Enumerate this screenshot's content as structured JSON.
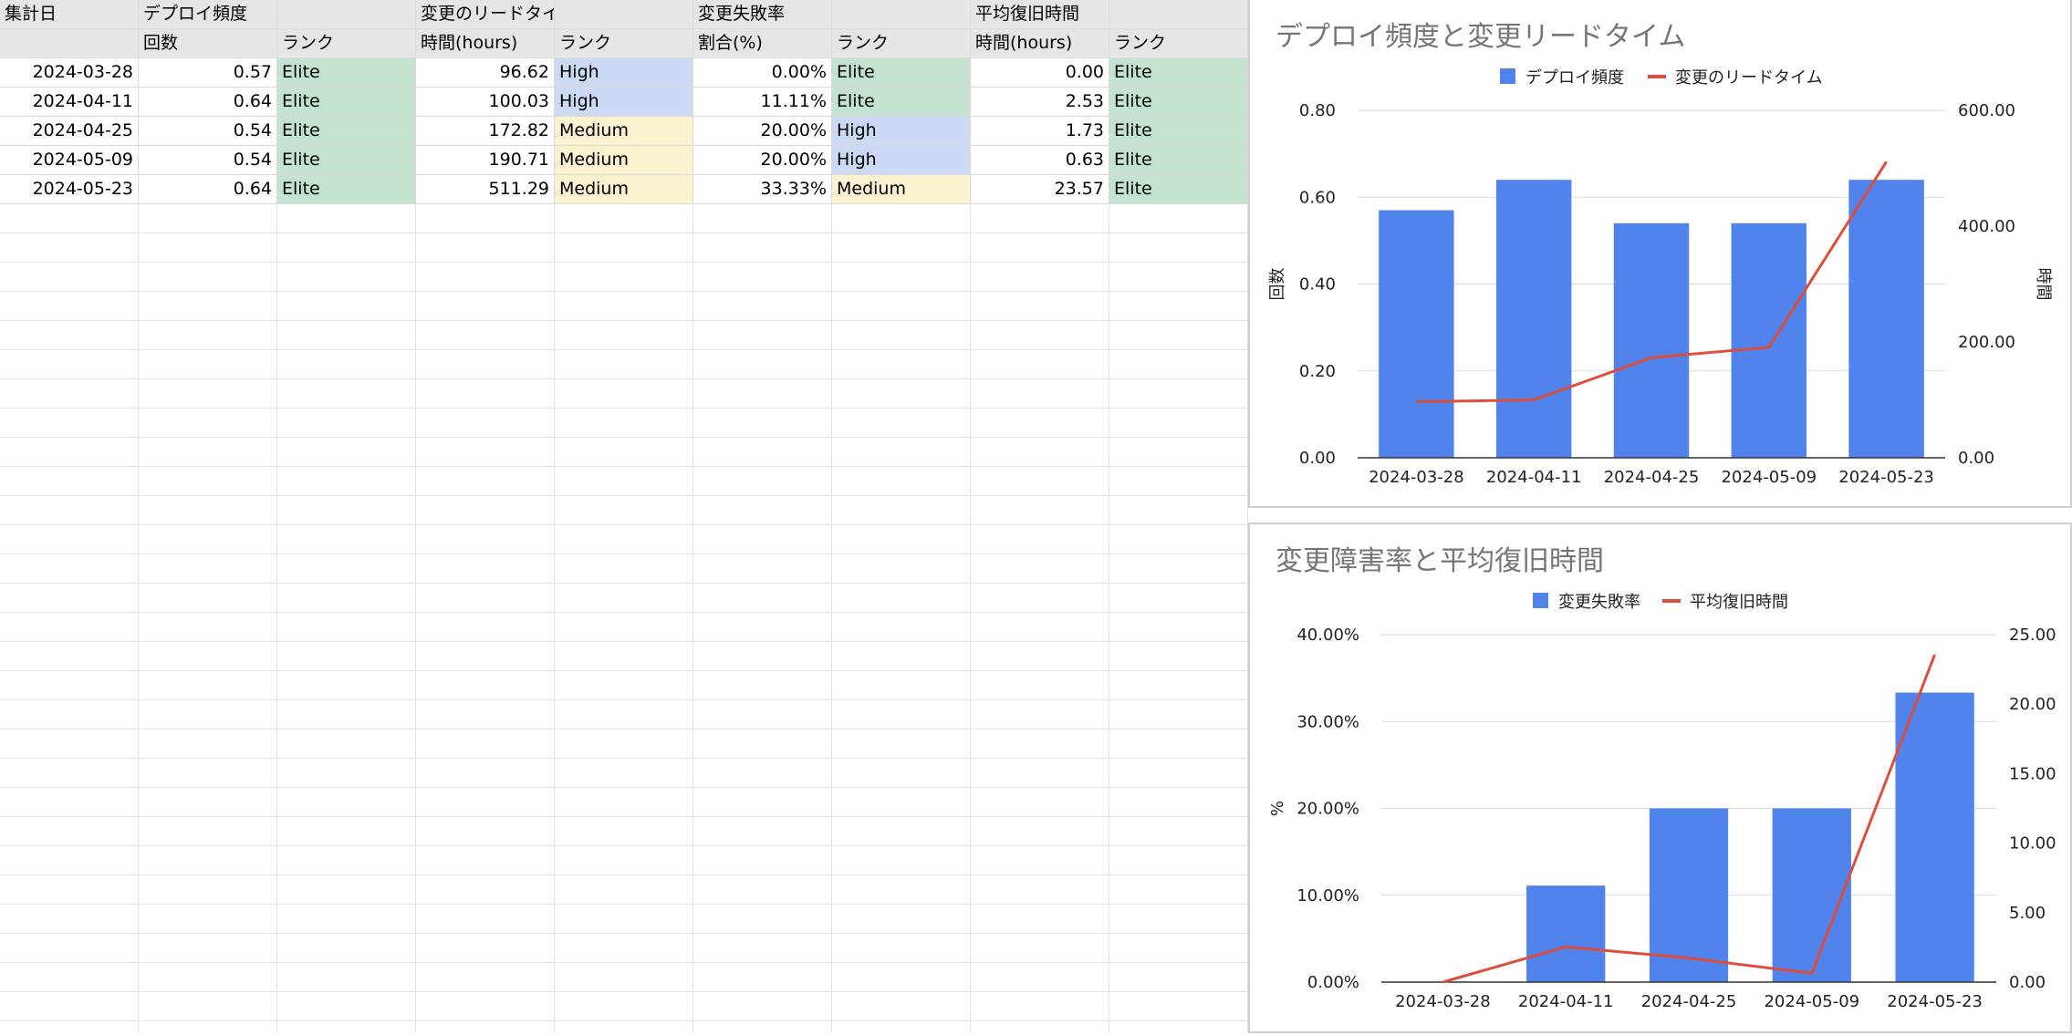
{
  "sheet": {
    "header1": [
      "集計日",
      "デプロイ頻度",
      "",
      "変更のリードタイム",
      "",
      "変更失敗率",
      "",
      "平均復旧時間",
      ""
    ],
    "header2": [
      "",
      "回数",
      "ランク",
      "時間(hours)",
      "ランク",
      "割合(%)",
      "ランク",
      "時間(hours)",
      "ランク"
    ],
    "rows": [
      [
        "2024-03-28",
        "0.57",
        "Elite",
        "96.62",
        "High",
        "0.00%",
        "Elite",
        "0.00",
        "Elite"
      ],
      [
        "2024-04-11",
        "0.64",
        "Elite",
        "100.03",
        "High",
        "11.11%",
        "Elite",
        "2.53",
        "Elite"
      ],
      [
        "2024-04-25",
        "0.54",
        "Elite",
        "172.82",
        "Medium",
        "20.00%",
        "High",
        "1.73",
        "Elite"
      ],
      [
        "2024-05-09",
        "0.54",
        "Elite",
        "190.71",
        "Medium",
        "20.00%",
        "High",
        "0.63",
        "Elite"
      ],
      [
        "2024-05-23",
        "0.64",
        "Elite",
        "511.29",
        "Medium",
        "33.33%",
        "Medium",
        "23.57",
        "Elite"
      ]
    ]
  },
  "colors": {
    "bar": "#5083ec",
    "line": "#dc4f3e",
    "elite": "#c3e2cf",
    "high": "#cbd9f5",
    "medium": "#fdf2d0"
  },
  "chart_data": [
    {
      "type": "bar+line",
      "title": "デプロイ頻度と変更リードタイム",
      "categories": [
        "2024-03-28",
        "2024-04-11",
        "2024-04-25",
        "2024-05-09",
        "2024-05-23"
      ],
      "series": [
        {
          "name": "デプロイ頻度",
          "type": "bar",
          "axis": "left",
          "values": [
            0.57,
            0.64,
            0.54,
            0.54,
            0.64
          ]
        },
        {
          "name": "変更のリードタイム",
          "type": "line",
          "axis": "right",
          "values": [
            96.62,
            100.03,
            172.82,
            190.71,
            511.29
          ]
        }
      ],
      "ylabel_left": "回数",
      "ylabel_right": "時間",
      "ylim_left": [
        0,
        0.8
      ],
      "ylim_right": [
        0,
        600
      ],
      "yticks_left": [
        "0.00",
        "0.20",
        "0.40",
        "0.60",
        "0.80"
      ],
      "yticks_right": [
        "0.00",
        "200.00",
        "400.00",
        "600.00"
      ],
      "legend": "top",
      "grid": true
    },
    {
      "type": "bar+line",
      "title": "変更障害率と平均復旧時間",
      "categories": [
        "2024-03-28",
        "2024-04-11",
        "2024-04-25",
        "2024-05-09",
        "2024-05-23"
      ],
      "series": [
        {
          "name": "変更失敗率",
          "type": "bar",
          "axis": "left",
          "values": [
            0,
            11.11,
            20,
            20,
            33.33
          ]
        },
        {
          "name": "平均復旧時間",
          "type": "line",
          "axis": "right",
          "values": [
            0,
            2.53,
            1.73,
            0.63,
            23.57
          ]
        }
      ],
      "ylabel_left": "%",
      "ylabel_right": "",
      "ylim_left": [
        0,
        40
      ],
      "ylim_right": [
        0,
        25
      ],
      "yticks_left": [
        "0.00%",
        "10.00%",
        "20.00%",
        "30.00%",
        "40.00%"
      ],
      "yticks_right": [
        "0.00",
        "5.00",
        "10.00",
        "15.00",
        "20.00",
        "25.00"
      ],
      "legend": "top",
      "grid": true
    }
  ]
}
